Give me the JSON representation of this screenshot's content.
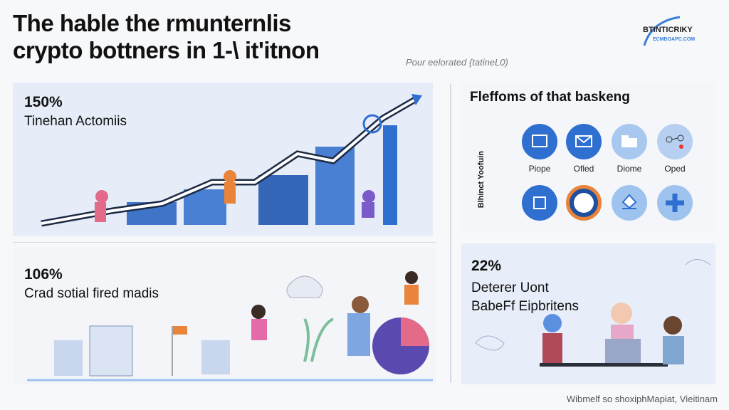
{
  "header": {
    "title_line1": "The hable the rmunternlis",
    "title_line2": "crypto bottners in 1-\\ it'itnon",
    "subtitle": "Pour eelorated {tatineL0)"
  },
  "logo": {
    "name": "BTINTICRIKY",
    "tagline": "ECMBOAPC.COM"
  },
  "panel_growth": {
    "stat": "150%",
    "label": "Tinehan Actomiis"
  },
  "panel_social": {
    "stat": "106%",
    "label": "Crad sotial fired madis"
  },
  "panel_platforms": {
    "title": "Fleffoms of that baskeng",
    "side_label": "Blhinct Yoofuin",
    "icons": [
      {
        "label": "Piope",
        "icon": "monitor-icon",
        "color": "#2f6fd0"
      },
      {
        "label": "Ofled",
        "icon": "envelope-icon",
        "color": "#2f6fd0"
      },
      {
        "label": "Diome",
        "icon": "folder-icon",
        "color": "#a9c8f0"
      },
      {
        "label": "Oped",
        "icon": "network-icon",
        "color": "#b7d0f2"
      },
      {
        "label": "",
        "icon": "wallet-icon",
        "color": "#2f6fd0"
      },
      {
        "label": "",
        "icon": "coin-icon",
        "color": "#e9843a"
      },
      {
        "label": "",
        "icon": "hand-icon",
        "color": "#9fc3ef"
      },
      {
        "label": "",
        "icon": "plus-icon",
        "color": "#9fc3ef"
      }
    ]
  },
  "panel_users": {
    "stat": "22%",
    "label_line1": "Deterer Uont",
    "label_line2": "BabeFf Eipbritens"
  },
  "footer": {
    "source": "Wibmelf so shoxiphMapiat, Vieitinam"
  },
  "colors": {
    "accent": "#2f6fd0",
    "orange": "#e9843a",
    "panel_blue": "#e6edf9"
  }
}
